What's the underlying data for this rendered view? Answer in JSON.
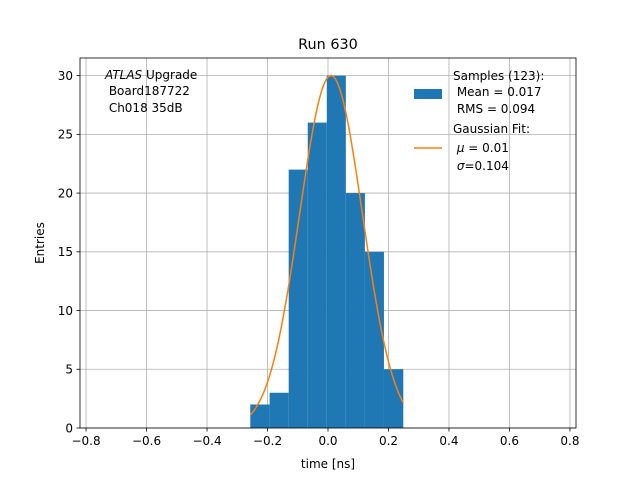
{
  "chart_data": {
    "type": "bar",
    "title": "Run 630",
    "xlabel": "time [ns]",
    "ylabel": "Entries",
    "xlim": [
      -0.82,
      0.82
    ],
    "ylim": [
      0,
      31.5
    ],
    "xticks": [
      -0.8,
      -0.6,
      -0.4,
      -0.2,
      0.0,
      0.2,
      0.4,
      0.6,
      0.8
    ],
    "xtick_labels": [
      "−0.8",
      "−0.6",
      "−0.4",
      "−0.2",
      "0.0",
      "0.2",
      "0.4",
      "0.6",
      "0.8"
    ],
    "yticks": [
      0,
      5,
      10,
      15,
      20,
      25,
      30
    ],
    "ytick_labels": [
      "0",
      "5",
      "10",
      "15",
      "20",
      "25",
      "30"
    ],
    "grid": true,
    "legend_position": "top-right",
    "annotation": {
      "italic": "ATLAS",
      "line1_rest": " Upgrade",
      "line2": " Board187722",
      "line3": " Ch018 35dB"
    },
    "histogram": {
      "name": "Samples (123):",
      "stats": [
        " Mean = 0.017",
        " RMS = 0.094"
      ],
      "color": "#1f77b4",
      "bin_edges": [
        -0.257,
        -0.193,
        -0.13,
        -0.067,
        -0.004,
        0.059,
        0.122,
        0.185,
        0.249
      ],
      "counts": [
        2,
        3,
        22,
        26,
        30,
        20,
        15,
        5
      ]
    },
    "fit": {
      "name": "Gaussian Fit:",
      "params": [
        {
          "sym": "μ",
          "text": " = 0.01"
        },
        {
          "sym": "σ",
          "text": "=0.104"
        }
      ],
      "color": "#ff7f0e",
      "amplitude": 30,
      "mu": 0.01,
      "sigma": 0.104,
      "x_range": [
        -0.257,
        0.249
      ]
    }
  }
}
